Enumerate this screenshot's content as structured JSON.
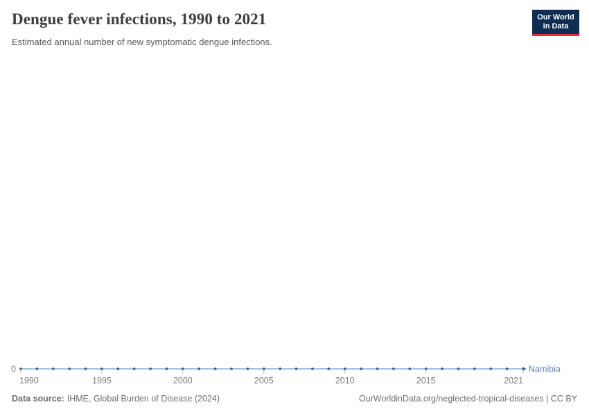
{
  "header": {
    "title": "Dengue fever infections, 1990 to 2021",
    "subtitle": "Estimated annual number of new symptomatic dengue infections.",
    "logo": {
      "line1": "Our World",
      "line2": "in Data"
    }
  },
  "footer": {
    "source_label": "Data source:",
    "source_text": "IHME, Global Burden of Disease (2024)",
    "attribution": "OurWorldinData.org/neglected-tropical-diseases | CC BY"
  },
  "chart_data": {
    "type": "line",
    "title": "Dengue fever infections, 1990 to 2021",
    "subtitle": "Estimated annual number of new symptomatic dengue infections.",
    "xlabel": "",
    "ylabel": "",
    "xlim": [
      1990,
      2021
    ],
    "x": [
      1990,
      1991,
      1992,
      1993,
      1994,
      1995,
      1996,
      1997,
      1998,
      1999,
      2000,
      2001,
      2002,
      2003,
      2004,
      2005,
      2006,
      2007,
      2008,
      2009,
      2010,
      2011,
      2012,
      2013,
      2014,
      2015,
      2016,
      2017,
      2018,
      2019,
      2020,
      2021
    ],
    "series": [
      {
        "name": "Namibia",
        "values": [
          0,
          0,
          0,
          0,
          0,
          0,
          0,
          0,
          0,
          0,
          0,
          0,
          0,
          0,
          0,
          0,
          0,
          0,
          0,
          0,
          0,
          0,
          0,
          0,
          0,
          0,
          0,
          0,
          0,
          0,
          0,
          0
        ]
      }
    ],
    "x_tick_labels": [
      "1990",
      "1995",
      "2000",
      "2005",
      "2010",
      "2015",
      "2021"
    ],
    "x_ticks": [
      1990,
      1995,
      2000,
      2005,
      2010,
      2015,
      2021
    ],
    "y_ticks": [
      0
    ],
    "y_tick_labels": [
      "0"
    ],
    "grid": false,
    "legend_position": "end-of-line-label",
    "colors": {
      "line": "#a3c0e0",
      "marker": "#3c6399",
      "entity_label": "#5b7eb5",
      "tick": "#b9b9b9",
      "tick_label": "#7c7c7c"
    }
  }
}
